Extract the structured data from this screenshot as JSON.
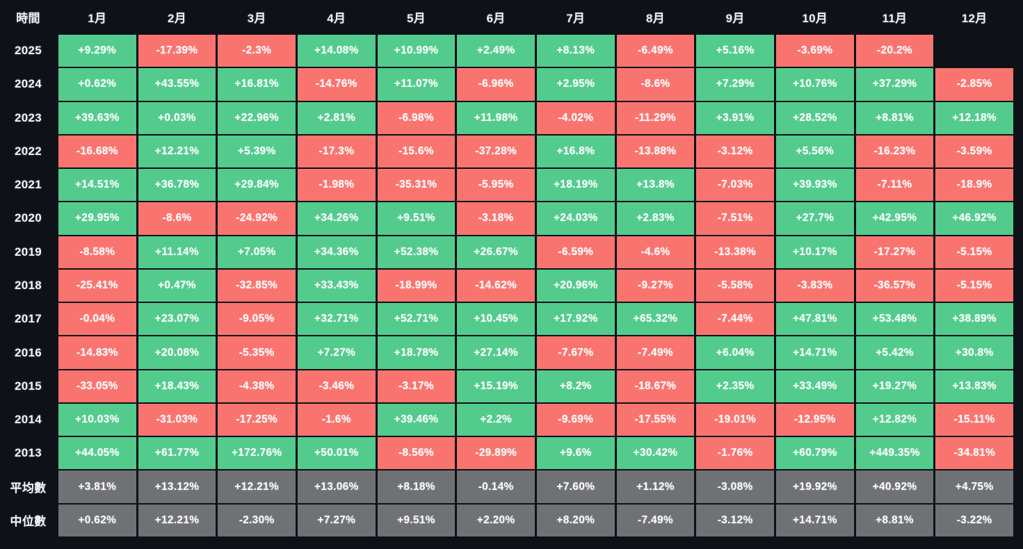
{
  "colors": {
    "positive": "#52cb8c",
    "negative": "#f9746f",
    "summary": "#6f7175",
    "background": "#0e1117",
    "text": "#fbfdfe"
  },
  "chart_data": {
    "type": "heatmap",
    "corner_label": "時間",
    "columns": [
      "1月",
      "2月",
      "3月",
      "4月",
      "5月",
      "6月",
      "7月",
      "8月",
      "9月",
      "10月",
      "11月",
      "12月"
    ],
    "rows": [
      {
        "label": "2025",
        "kind": "year",
        "values": [
          "+9.29%",
          "-17.39%",
          "-2.3%",
          "+14.08%",
          "+10.99%",
          "+2.49%",
          "+8.13%",
          "-6.49%",
          "+5.16%",
          "-3.69%",
          "-20.2%",
          null
        ]
      },
      {
        "label": "2024",
        "kind": "year",
        "values": [
          "+0.62%",
          "+43.55%",
          "+16.81%",
          "-14.76%",
          "+11.07%",
          "-6.96%",
          "+2.95%",
          "-8.6%",
          "+7.29%",
          "+10.76%",
          "+37.29%",
          "-2.85%"
        ]
      },
      {
        "label": "2023",
        "kind": "year",
        "values": [
          "+39.63%",
          "+0.03%",
          "+22.96%",
          "+2.81%",
          "-6.98%",
          "+11.98%",
          "-4.02%",
          "-11.29%",
          "+3.91%",
          "+28.52%",
          "+8.81%",
          "+12.18%"
        ]
      },
      {
        "label": "2022",
        "kind": "year",
        "values": [
          "-16.68%",
          "+12.21%",
          "+5.39%",
          "-17.3%",
          "-15.6%",
          "-37.28%",
          "+16.8%",
          "-13.88%",
          "-3.12%",
          "+5.56%",
          "-16.23%",
          "-3.59%"
        ]
      },
      {
        "label": "2021",
        "kind": "year",
        "values": [
          "+14.51%",
          "+36.78%",
          "+29.84%",
          "-1.98%",
          "-35.31%",
          "-5.95%",
          "+18.19%",
          "+13.8%",
          "-7.03%",
          "+39.93%",
          "-7.11%",
          "-18.9%"
        ]
      },
      {
        "label": "2020",
        "kind": "year",
        "values": [
          "+29.95%",
          "-8.6%",
          "-24.92%",
          "+34.26%",
          "+9.51%",
          "-3.18%",
          "+24.03%",
          "+2.83%",
          "-7.51%",
          "+27.7%",
          "+42.95%",
          "+46.92%"
        ]
      },
      {
        "label": "2019",
        "kind": "year",
        "values": [
          "-8.58%",
          "+11.14%",
          "+7.05%",
          "+34.36%",
          "+52.38%",
          "+26.67%",
          "-6.59%",
          "-4.6%",
          "-13.38%",
          "+10.17%",
          "-17.27%",
          "-5.15%"
        ]
      },
      {
        "label": "2018",
        "kind": "year",
        "values": [
          "-25.41%",
          "+0.47%",
          "-32.85%",
          "+33.43%",
          "-18.99%",
          "-14.62%",
          "+20.96%",
          "-9.27%",
          "-5.58%",
          "-3.83%",
          "-36.57%",
          "-5.15%"
        ]
      },
      {
        "label": "2017",
        "kind": "year",
        "values": [
          "-0.04%",
          "+23.07%",
          "-9.05%",
          "+32.71%",
          "+52.71%",
          "+10.45%",
          "+17.92%",
          "+65.32%",
          "-7.44%",
          "+47.81%",
          "+53.48%",
          "+38.89%"
        ]
      },
      {
        "label": "2016",
        "kind": "year",
        "values": [
          "-14.83%",
          "+20.08%",
          "-5.35%",
          "+7.27%",
          "+18.78%",
          "+27.14%",
          "-7.67%",
          "-7.49%",
          "+6.04%",
          "+14.71%",
          "+5.42%",
          "+30.8%"
        ]
      },
      {
        "label": "2015",
        "kind": "year",
        "values": [
          "-33.05%",
          "+18.43%",
          "-4.38%",
          "-3.46%",
          "-3.17%",
          "+15.19%",
          "+8.2%",
          "-18.67%",
          "+2.35%",
          "+33.49%",
          "+19.27%",
          "+13.83%"
        ]
      },
      {
        "label": "2014",
        "kind": "year",
        "values": [
          "+10.03%",
          "-31.03%",
          "-17.25%",
          "-1.6%",
          "+39.46%",
          "+2.2%",
          "-9.69%",
          "-17.55%",
          "-19.01%",
          "-12.95%",
          "+12.82%",
          "-15.11%"
        ]
      },
      {
        "label": "2013",
        "kind": "year",
        "values": [
          "+44.05%",
          "+61.77%",
          "+172.76%",
          "+50.01%",
          "-8.56%",
          "-29.89%",
          "+9.6%",
          "+30.42%",
          "-1.76%",
          "+60.79%",
          "+449.35%",
          "-34.81%"
        ]
      },
      {
        "label": "平均數",
        "kind": "summary",
        "values": [
          "+3.81%",
          "+13.12%",
          "+12.21%",
          "+13.06%",
          "+8.18%",
          "-0.14%",
          "+7.60%",
          "+1.12%",
          "-3.08%",
          "+19.92%",
          "+40.92%",
          "+4.75%"
        ]
      },
      {
        "label": "中位數",
        "kind": "summary",
        "values": [
          "+0.62%",
          "+12.21%",
          "-2.30%",
          "+7.27%",
          "+9.51%",
          "+2.20%",
          "+8.20%",
          "-7.49%",
          "-3.12%",
          "+14.71%",
          "+8.81%",
          "-3.22%"
        ]
      }
    ]
  }
}
